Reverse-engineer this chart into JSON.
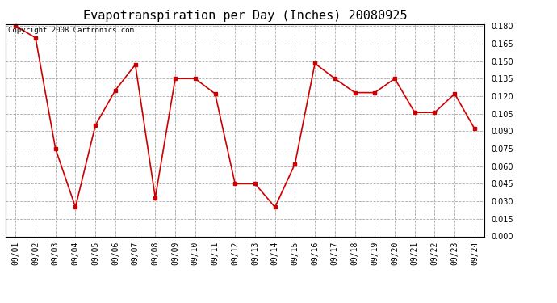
{
  "title": "Evapotranspiration per Day (Inches) 20080925",
  "copyright_text": "Copyright 2008 Cartronics.com",
  "dates": [
    "09/01",
    "09/02",
    "09/03",
    "09/04",
    "09/05",
    "09/06",
    "09/07",
    "09/08",
    "09/09",
    "09/10",
    "09/11",
    "09/12",
    "09/13",
    "09/14",
    "09/15",
    "09/16",
    "09/17",
    "09/18",
    "09/19",
    "09/20",
    "09/21",
    "09/22",
    "09/23",
    "09/24"
  ],
  "values": [
    0.18,
    0.17,
    0.075,
    0.025,
    0.095,
    0.125,
    0.147,
    0.033,
    0.135,
    0.135,
    0.122,
    0.045,
    0.045,
    0.025,
    0.062,
    0.148,
    0.135,
    0.123,
    0.123,
    0.135,
    0.106,
    0.106,
    0.122,
    0.092
  ],
  "ylim": [
    0.0,
    0.1815
  ],
  "yticks": [
    0.0,
    0.015,
    0.03,
    0.045,
    0.06,
    0.075,
    0.09,
    0.105,
    0.12,
    0.135,
    0.15,
    0.165,
    0.18
  ],
  "line_color": "#cc0000",
  "marker": "s",
  "marker_size": 2.5,
  "line_width": 1.2,
  "background_color": "#ffffff",
  "grid_color": "#aaaaaa",
  "title_fontsize": 11,
  "tick_fontsize": 7,
  "copyright_fontsize": 6.5
}
